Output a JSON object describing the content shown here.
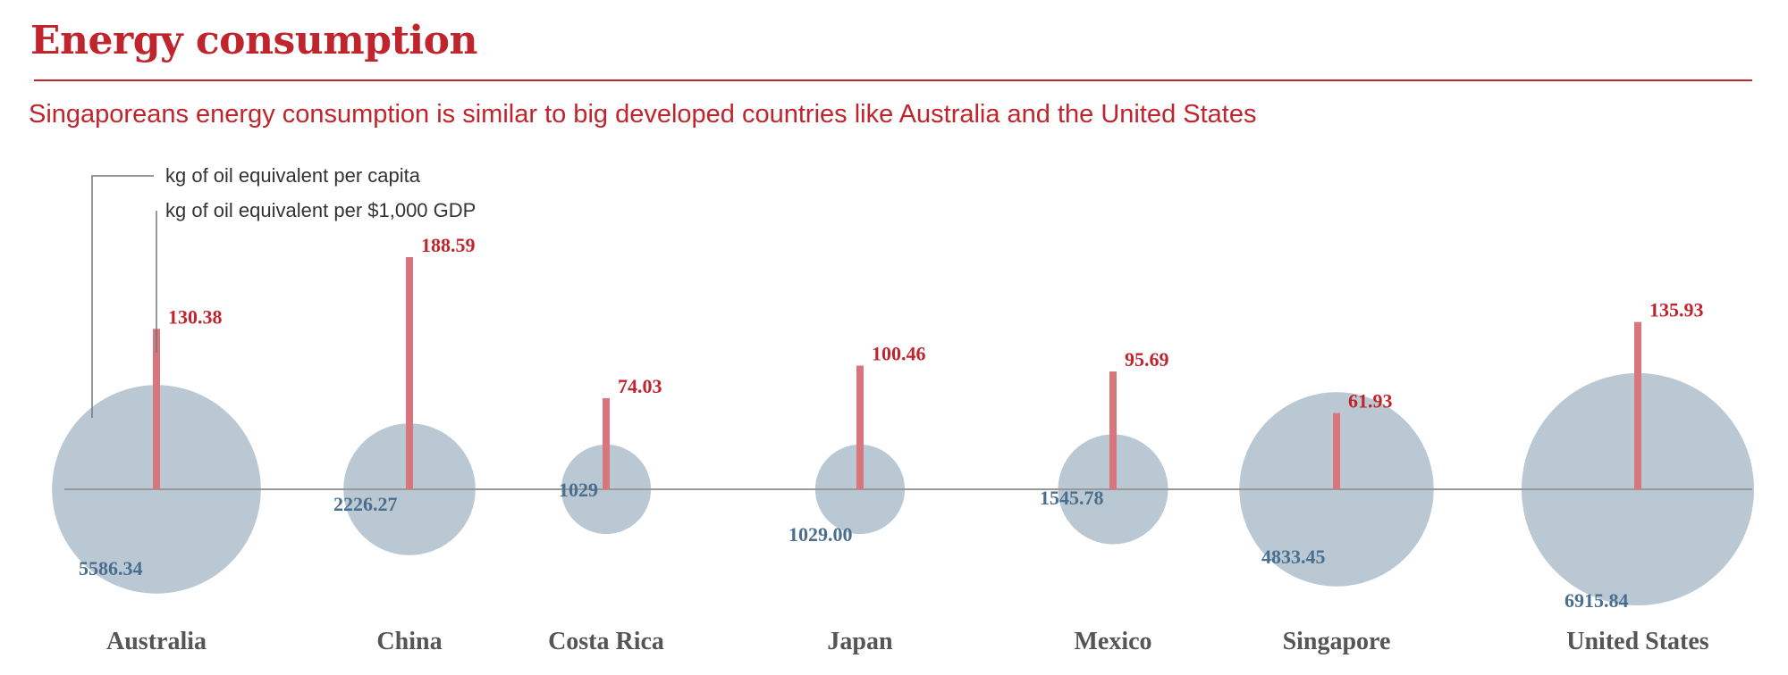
{
  "header": {
    "title": "Energy consumption",
    "subtitle": "Singaporeans energy consumption is similar to big developed countries like Australia and the United States"
  },
  "legend": {
    "per_capita_label": "kg of oil equivalent per capita",
    "per_gdp_label": "kg of oil equivalent per $1,000 GDP"
  },
  "colors": {
    "accent": "#c0242c",
    "bar": "#d9757c",
    "bubble": "#b5c5d0",
    "bubble_label": "#4a6f8e",
    "baseline": "#999999",
    "country_label": "#555555"
  },
  "chart_data": {
    "type": "bubble-bar",
    "categories": [
      "Australia",
      "China",
      "Costa Rica",
      "Japan",
      "Mexico",
      "Singapore",
      "United States"
    ],
    "series": [
      {
        "name": "kg of oil equivalent per capita",
        "mark": "bubble",
        "values": [
          5586.34,
          2226.27,
          1029,
          1029.0,
          1545.78,
          4833.45,
          6915.84
        ],
        "labels": [
          "5586.34",
          "2226.27",
          "1029",
          "1029.00",
          "1545.78",
          "4833.45",
          "6915.84"
        ]
      },
      {
        "name": "kg of oil equivalent per $1,000 GDP",
        "mark": "bar",
        "values": [
          130.38,
          188.59,
          74.03,
          100.46,
          95.69,
          61.93,
          135.93
        ],
        "labels": [
          "130.38",
          "188.59",
          "74.03",
          "100.46",
          "95.69",
          "61.93",
          "135.93"
        ]
      }
    ]
  }
}
